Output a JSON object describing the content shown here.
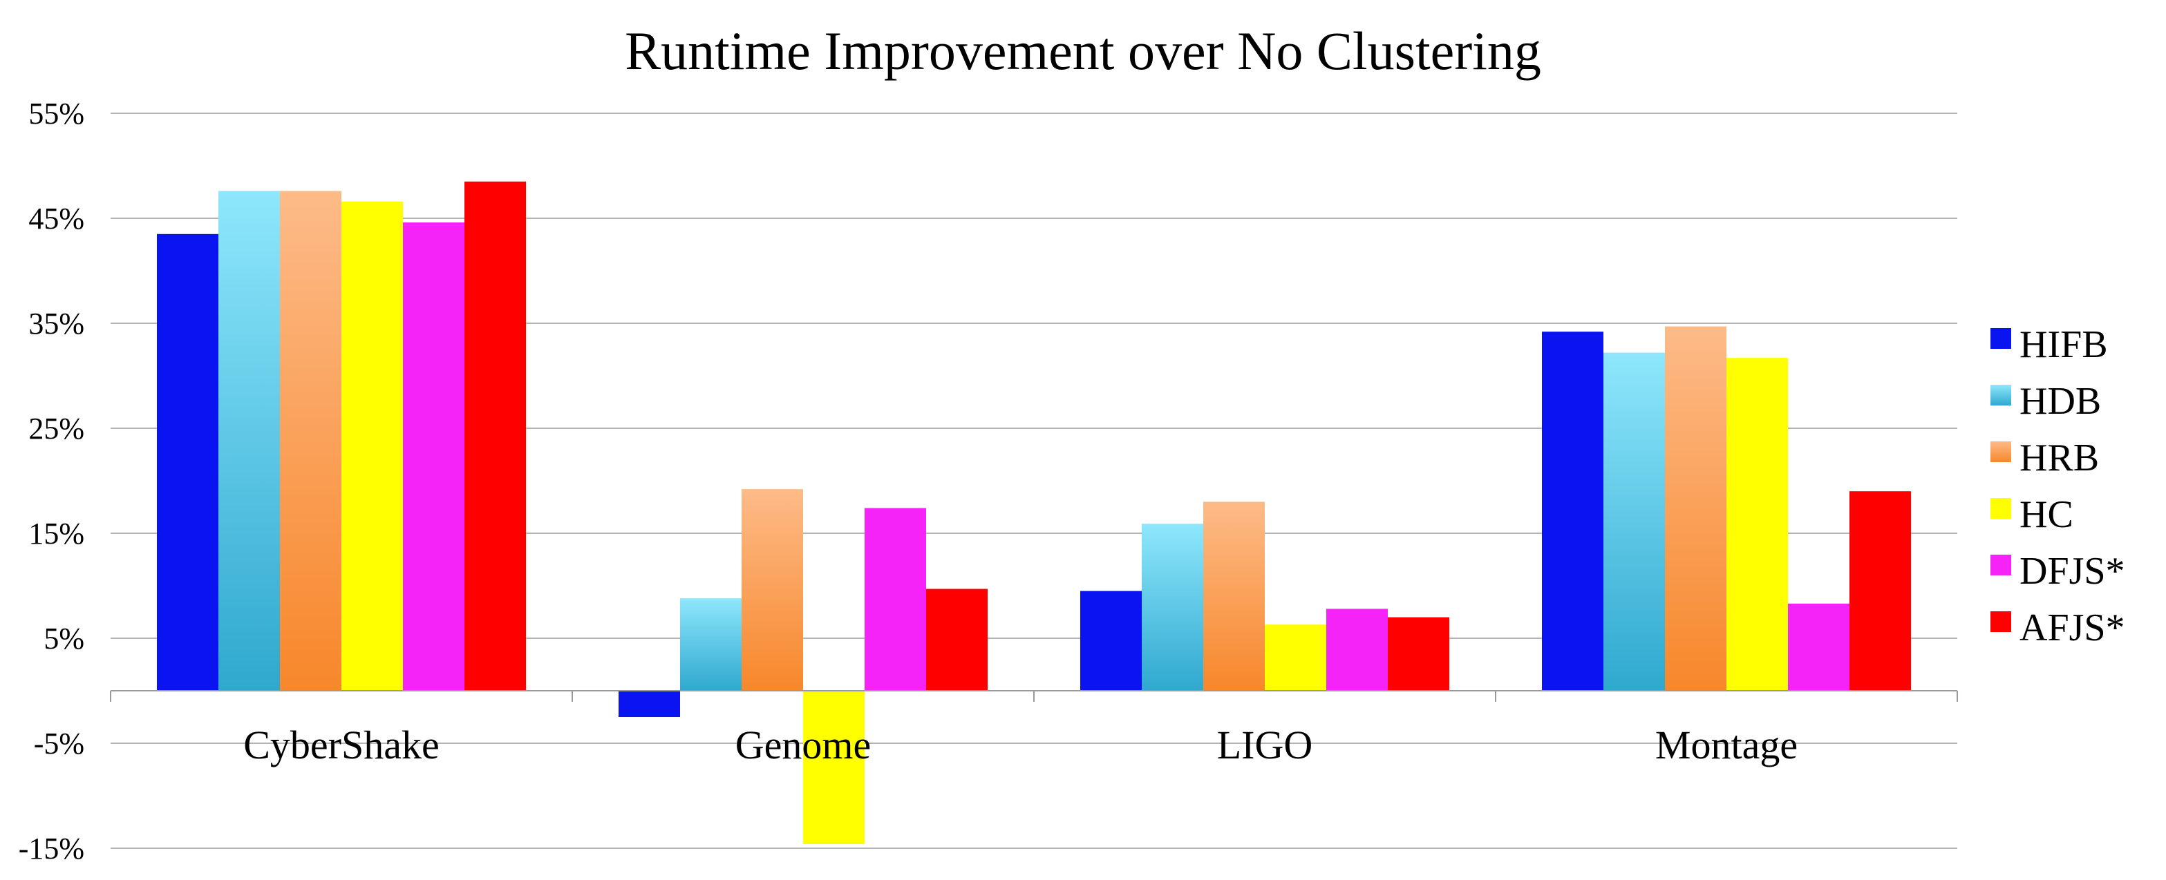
{
  "chart_data": {
    "type": "bar",
    "title": "Runtime Improvement over No Clustering",
    "xlabel": "",
    "ylabel": "",
    "categories": [
      "CyberShake",
      "Genome",
      "LIGO",
      "Montage"
    ],
    "ylim": [
      -15,
      55
    ],
    "yticks": [
      55,
      45,
      35,
      25,
      15,
      5,
      -5,
      -15
    ],
    "ytick_labels": [
      "55%",
      "45%",
      "35%",
      "25%",
      "15%",
      "5%",
      "-5%",
      "-15%"
    ],
    "grid": true,
    "legend_position": "right",
    "series": [
      {
        "name": "HIFB",
        "color": "#0a14f0",
        "values": [
          43.5,
          -2.5,
          9.5,
          34.2
        ]
      },
      {
        "name": "HDB",
        "color": "#5cc6e6",
        "values": [
          47.6,
          8.8,
          15.9,
          32.2
        ]
      },
      {
        "name": "HRB",
        "color": "#fb9e52",
        "values": [
          47.6,
          19.2,
          18.0,
          34.7
        ]
      },
      {
        "name": "HC",
        "color": "#ffff00",
        "values": [
          46.6,
          -14.6,
          6.3,
          31.7
        ]
      },
      {
        "name": "DFJS*",
        "color": "#f623f8",
        "values": [
          44.6,
          17.4,
          7.8,
          8.3
        ]
      },
      {
        "name": "AFJS*",
        "color": "#ff0000",
        "values": [
          48.5,
          9.7,
          7.0,
          19.0
        ]
      }
    ]
  }
}
